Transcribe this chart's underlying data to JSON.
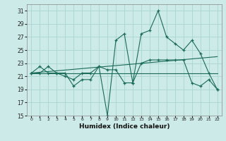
{
  "title": "",
  "xlabel": "Humidex (Indice chaleur)",
  "bg_color": "#cceae7",
  "grid_color": "#aad4d0",
  "line_color": "#1a6b5a",
  "x_data": [
    0,
    1,
    2,
    3,
    4,
    5,
    6,
    7,
    8,
    9,
    10,
    11,
    12,
    13,
    14,
    15,
    16,
    17,
    18,
    19,
    20,
    21,
    22
  ],
  "series1": [
    21.5,
    22.5,
    21.5,
    21.5,
    21.5,
    19.5,
    20.5,
    20.5,
    22.5,
    15.0,
    26.5,
    27.5,
    20.0,
    27.5,
    28.0,
    31.0,
    27.0,
    26.0,
    25.0,
    26.5,
    24.5,
    21.5,
    19.0
  ],
  "series2": [
    21.5,
    21.5,
    22.5,
    21.5,
    21.0,
    20.5,
    21.5,
    21.5,
    22.5,
    22.0,
    22.0,
    20.0,
    20.0,
    23.0,
    23.5,
    23.5,
    23.5,
    23.5,
    23.5,
    20.0,
    19.5,
    20.5,
    19.0
  ],
  "trend1_x": [
    0,
    22
  ],
  "trend1_y": [
    21.5,
    24.0
  ],
  "trend2_x": [
    0,
    22
  ],
  "trend2_y": [
    21.5,
    21.5
  ],
  "ylim": [
    15,
    32
  ],
  "yticks": [
    15,
    17,
    19,
    21,
    23,
    25,
    27,
    29,
    31
  ],
  "xlim": [
    -0.5,
    22.5
  ],
  "xticks": [
    0,
    1,
    2,
    3,
    4,
    5,
    6,
    7,
    8,
    9,
    10,
    11,
    12,
    13,
    14,
    15,
    16,
    17,
    18,
    19,
    20,
    21,
    22
  ]
}
